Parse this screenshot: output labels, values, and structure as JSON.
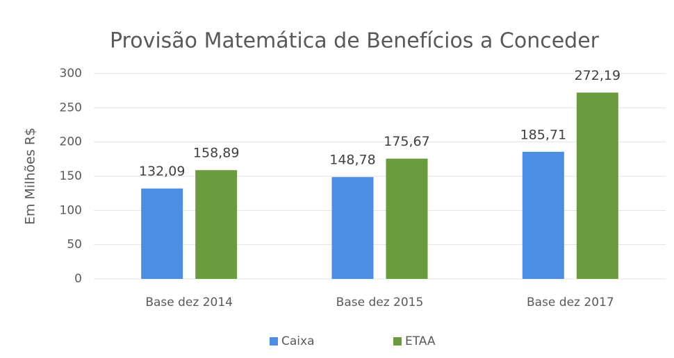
{
  "chart_data": {
    "type": "bar",
    "title": "Provisão Matemática de Benefícios a Conceder",
    "y_label": "Em Milhões R$",
    "categories": [
      "Base dez 2014",
      "Base dez 2015",
      "Base dez 2017"
    ],
    "series": [
      {
        "name": "Caixa",
        "color": "#4d8ee3",
        "values": [
          132.09,
          148.78,
          185.71
        ],
        "value_labels": [
          "132,09",
          "148,78",
          "185,71"
        ]
      },
      {
        "name": "ETAA",
        "color": "#6b9b3f",
        "values": [
          158.89,
          175.67,
          272.19
        ],
        "value_labels": [
          "158,89",
          "175,67",
          "272,19"
        ]
      }
    ],
    "ylim": [
      0,
      300
    ],
    "yticks": [
      0,
      50,
      100,
      150,
      200,
      250,
      300
    ],
    "grid": true,
    "legend": "bottom"
  }
}
